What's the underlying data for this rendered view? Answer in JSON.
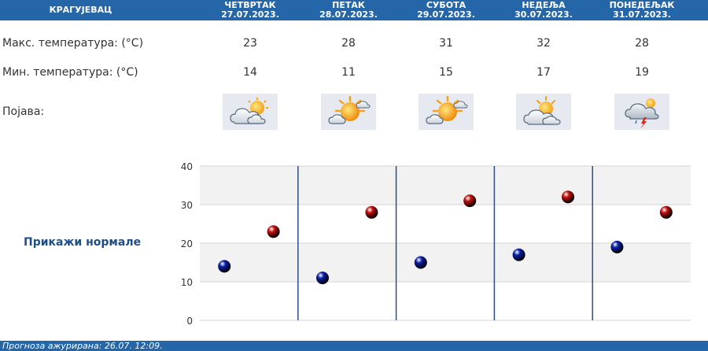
{
  "header": {
    "city": "КРАГУЈЕВАЦ",
    "days": [
      {
        "name": "ЧЕТВРТАК",
        "date": "27.07.2023."
      },
      {
        "name": "ПЕТАК",
        "date": "28.07.2023."
      },
      {
        "name": "СУБОТА",
        "date": "29.07.2023."
      },
      {
        "name": "НЕДЕЉА",
        "date": "30.07.2023."
      },
      {
        "name": "ПОНЕДЕЉАК",
        "date": "31.07.2023."
      }
    ]
  },
  "rows": {
    "max_label": "Макс. температура: (°C)",
    "min_label": "Мин. температура: (°C)",
    "phenomenon_label": "Појава:",
    "max_values": [
      "23",
      "28",
      "31",
      "32",
      "28"
    ],
    "min_values": [
      "14",
      "11",
      "15",
      "17",
      "19"
    ],
    "icons": [
      "partly-cloudy-icon",
      "mostly-sunny-icon",
      "mostly-sunny-icon",
      "partly-cloudy-icon",
      "thunderstorm-icon"
    ]
  },
  "normals_link": "Прикажи нормале",
  "chart_data": {
    "type": "scatter",
    "categories": [
      "27.07.2023.",
      "28.07.2023.",
      "29.07.2023.",
      "30.07.2023.",
      "31.07.2023."
    ],
    "series": [
      {
        "values": [
          14,
          11,
          15,
          17,
          19
        ],
        "color": "#0a1fa8"
      },
      {
        "values": [
          23,
          28,
          31,
          32,
          28
        ],
        "color": "#c4100e"
      }
    ],
    "ylim": [
      0,
      40
    ],
    "yticks": [
      "0",
      "10",
      "20",
      "30",
      "40"
    ],
    "grid": true
  },
  "footer": {
    "text": "Прогноза ажурирана:  26.07. 12:09."
  },
  "colors": {
    "header_bg": "#2466a8",
    "min_marker": "#0a1fa8",
    "max_marker": "#c4100e"
  }
}
